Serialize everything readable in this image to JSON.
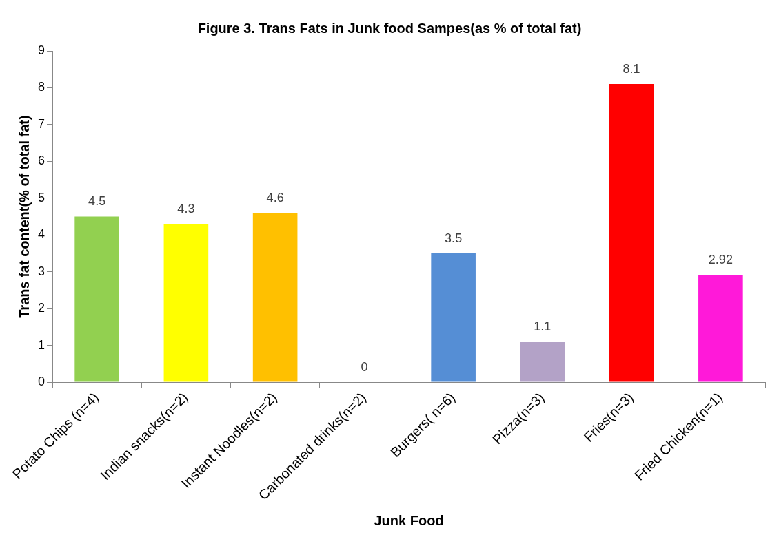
{
  "chart_data": {
    "type": "bar",
    "title": "Figure 3. Trans Fats in Junk food Sampes(as % of total fat)",
    "xlabel": "Junk Food",
    "ylabel": "Trans fat content(% of total fat)",
    "categories": [
      "Potato Chips (n=4)",
      "Indian snacks(n=2)",
      "Instant Noodles(n=2)",
      "Carbonated drinks(n=2)",
      "Burgers( n=6)",
      "Pizza(n=3)",
      "Fries(n=3)",
      "Fried Chicken(n=1)"
    ],
    "values": [
      4.5,
      4.3,
      4.6,
      0,
      3.5,
      1.1,
      8.1,
      2.92
    ],
    "colors": [
      "#92d050",
      "#ffff00",
      "#ffc000",
      "#808080",
      "#558ed5",
      "#b3a2c7",
      "#ff0000",
      "#ff19d9"
    ],
    "ylim": [
      0,
      9
    ],
    "yticks": [
      0,
      1,
      2,
      3,
      4,
      5,
      6,
      7,
      8,
      9
    ],
    "grid": false,
    "legend": false,
    "data_labels": true
  }
}
